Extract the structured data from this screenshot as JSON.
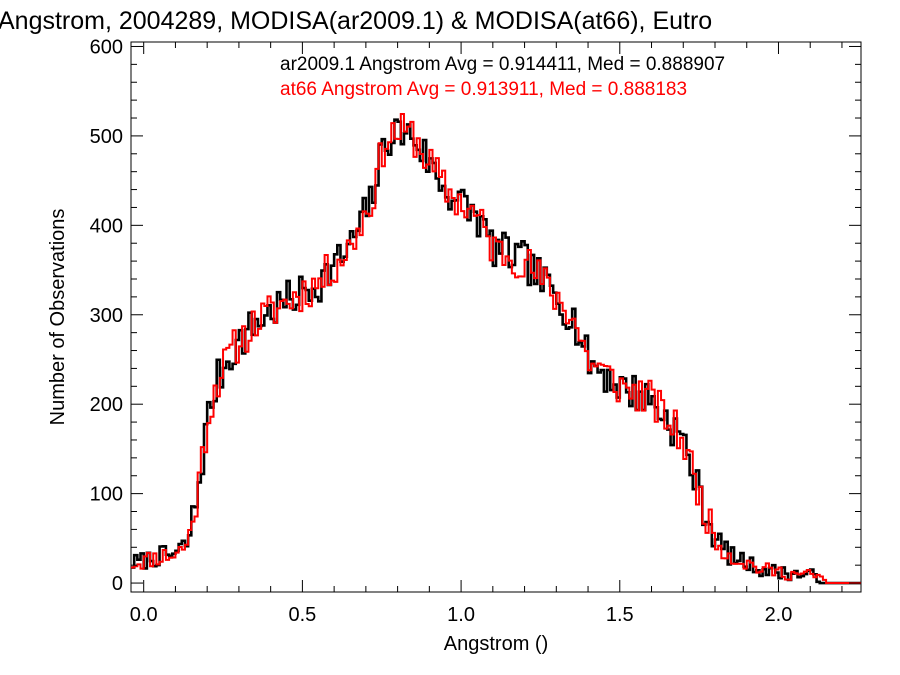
{
  "chart_data": {
    "type": "line",
    "title": "Angstrom, 2004289, MODISA(ar2009.1) & MODISA(at66), Eutro",
    "xlabel": "Angstrom ()",
    "ylabel": "Number of Observations",
    "xlim": [
      -0.04,
      2.26
    ],
    "ylim": [
      -10,
      605
    ],
    "xticks": [
      "0.0",
      "0.5",
      "1.0",
      "1.5",
      "2.0"
    ],
    "yticks": [
      "0",
      "100",
      "200",
      "300",
      "400",
      "500",
      "600"
    ],
    "annotations": [
      "ar2009.1 Angstrom Avg = 0.914411, Med = 0.888907",
      "at66 Angstrom Avg = 0.913911, Med = 0.888183"
    ],
    "grid": false,
    "bin_width": 0.01,
    "x_start": -0.04,
    "control_points": [
      [
        -0.04,
        22
      ],
      [
        0.0,
        25
      ],
      [
        0.05,
        30
      ],
      [
        0.1,
        32
      ],
      [
        0.14,
        45
      ],
      [
        0.17,
        100
      ],
      [
        0.2,
        180
      ],
      [
        0.23,
        225
      ],
      [
        0.28,
        260
      ],
      [
        0.35,
        290
      ],
      [
        0.45,
        315
      ],
      [
        0.55,
        335
      ],
      [
        0.65,
        375
      ],
      [
        0.72,
        430
      ],
      [
        0.76,
        495
      ],
      [
        0.8,
        505
      ],
      [
        0.85,
        500
      ],
      [
        0.9,
        470
      ],
      [
        0.95,
        440
      ],
      [
        1.0,
        425
      ],
      [
        1.05,
        410
      ],
      [
        1.1,
        375
      ],
      [
        1.2,
        360
      ],
      [
        1.3,
        320
      ],
      [
        1.35,
        300
      ],
      [
        1.4,
        250
      ],
      [
        1.5,
        220
      ],
      [
        1.6,
        205
      ],
      [
        1.7,
        160
      ],
      [
        1.75,
        100
      ],
      [
        1.8,
        50
      ],
      [
        1.85,
        30
      ],
      [
        1.95,
        15
      ],
      [
        2.05,
        10
      ],
      [
        2.12,
        8
      ],
      [
        2.15,
        0
      ],
      [
        2.26,
        0
      ]
    ],
    "series": [
      {
        "name": "ar2009.1",
        "color": "#000000",
        "noise_amplitude": 22,
        "seed": 7
      },
      {
        "name": "at66",
        "color": "#ff0000",
        "noise_amplitude": 22,
        "seed": 11
      }
    ]
  }
}
